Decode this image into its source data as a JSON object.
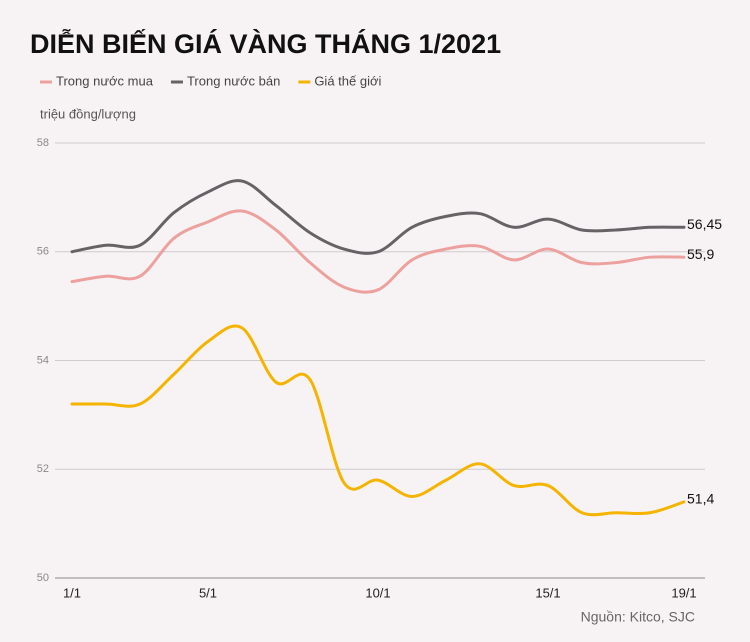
{
  "chart_data": {
    "type": "line",
    "title": "DIỄN BIẾN GIÁ VÀNG THÁNG 1/2021",
    "y_label": "triệu đồng/lượng",
    "source": "Nguồn: Kitco, SJC",
    "categories": [
      "1/1",
      null,
      null,
      null,
      "5/1",
      null,
      null,
      null,
      null,
      "10/1",
      null,
      null,
      null,
      null,
      "15/1",
      null,
      null,
      null,
      "19/1"
    ],
    "ylim": [
      50,
      58
    ],
    "yticks": [
      50,
      52,
      54,
      56,
      58
    ],
    "grid": true,
    "series": [
      {
        "name": "Trong nước mua",
        "color": "#eda19e",
        "values": [
          55.45,
          55.55,
          55.55,
          56.25,
          56.55,
          56.75,
          56.4,
          55.8,
          55.35,
          55.3,
          55.85,
          56.05,
          56.1,
          55.85,
          56.05,
          55.8,
          55.8,
          55.9,
          55.9
        ],
        "value_labels": [
          null,
          null,
          null,
          null,
          null,
          null,
          null,
          null,
          null,
          null,
          null,
          null,
          null,
          null,
          null,
          null,
          null,
          null,
          "55,9"
        ]
      },
      {
        "name": "Trong nước bán",
        "color": "#666366",
        "values": [
          56.0,
          56.12,
          56.12,
          56.72,
          57.1,
          57.3,
          56.85,
          56.35,
          56.05,
          56.0,
          56.45,
          56.65,
          56.7,
          56.45,
          56.6,
          56.4,
          56.4,
          56.45,
          56.45
        ],
        "value_labels": [
          null,
          null,
          null,
          null,
          null,
          null,
          null,
          null,
          null,
          null,
          null,
          null,
          null,
          null,
          null,
          null,
          null,
          null,
          "56,45"
        ]
      },
      {
        "name": "Giá thế giới",
        "color": "#f5b400",
        "values": [
          53.2,
          53.2,
          53.2,
          53.75,
          54.35,
          54.6,
          53.6,
          53.65,
          51.75,
          51.8,
          51.5,
          51.8,
          52.1,
          51.7,
          51.7,
          51.2,
          51.2,
          51.2,
          51.4
        ],
        "value_labels": [
          null,
          null,
          null,
          null,
          null,
          null,
          null,
          null,
          null,
          null,
          null,
          null,
          null,
          null,
          null,
          null,
          null,
          null,
          "51,4"
        ]
      }
    ]
  }
}
